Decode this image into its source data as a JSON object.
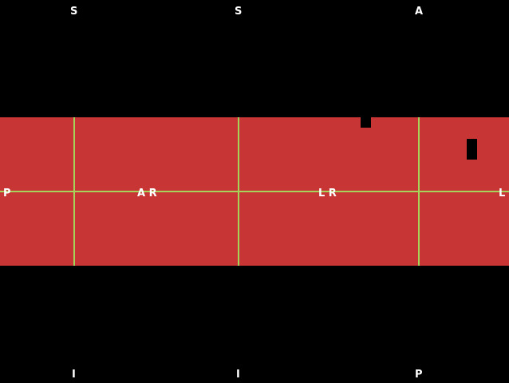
{
  "viewer": {
    "top_labels": [
      "S",
      "S",
      "A"
    ],
    "bottom_labels": [
      "I",
      "I",
      "P"
    ],
    "middle_labels": [
      "P",
      "A R",
      "L R",
      "L"
    ]
  },
  "colors": {
    "background": "#000000",
    "band": "#c73535",
    "crosshair": "#a6d45a",
    "text": "#ffffff"
  }
}
